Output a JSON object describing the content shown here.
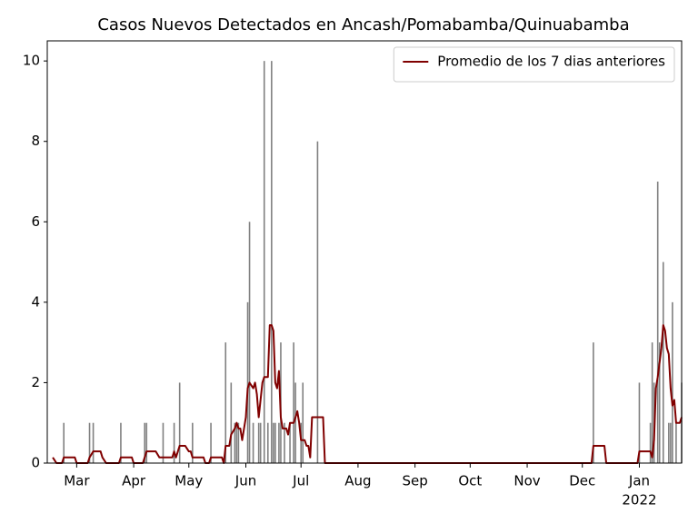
{
  "chart_data": {
    "type": "bar",
    "title": "Casos Nuevos Detectados en Ancash/Pomabamba/Quinuabamba",
    "xlim": [
      "2021-02-13",
      "2022-01-24"
    ],
    "xticks": [
      {
        "value": "2021-03-01",
        "label": "Mar"
      },
      {
        "value": "2021-04-01",
        "label": "Apr"
      },
      {
        "value": "2021-05-01",
        "label": "May"
      },
      {
        "value": "2021-06-01",
        "label": "Jun"
      },
      {
        "value": "2021-07-01",
        "label": "Jul"
      },
      {
        "value": "2021-08-01",
        "label": "Aug"
      },
      {
        "value": "2021-09-01",
        "label": "Sep"
      },
      {
        "value": "2021-10-01",
        "label": "Oct"
      },
      {
        "value": "2021-11-01",
        "label": "Nov"
      },
      {
        "value": "2021-12-01",
        "label": "Dec"
      },
      {
        "value": "2022-01-01",
        "label": "Jan"
      }
    ],
    "x_year_label": "2022",
    "ylim": [
      0,
      10.5
    ],
    "yticks": [
      0,
      2,
      4,
      6,
      8,
      10
    ],
    "legend": "upper right",
    "series": [
      {
        "type": "bar",
        "color": "#808080",
        "x": [
          "2021-02-22",
          "2021-03-08",
          "2021-03-10",
          "2021-03-25",
          "2021-04-07",
          "2021-04-08",
          "2021-04-17",
          "2021-04-23",
          "2021-04-26",
          "2021-05-03",
          "2021-05-13",
          "2021-05-21",
          "2021-05-24",
          "2021-05-26",
          "2021-05-27",
          "2021-05-28",
          "2021-06-02",
          "2021-06-03",
          "2021-06-05",
          "2021-06-08",
          "2021-06-09",
          "2021-06-11",
          "2021-06-13",
          "2021-06-15",
          "2021-06-16",
          "2021-06-17",
          "2021-06-19",
          "2021-06-20",
          "2021-06-22",
          "2021-06-25",
          "2021-06-27",
          "2021-06-28",
          "2021-07-01",
          "2021-07-02",
          "2021-07-10",
          "2021-12-07",
          "2022-01-01",
          "2022-01-07",
          "2022-01-08",
          "2022-01-09",
          "2022-01-11",
          "2022-01-12",
          "2022-01-14",
          "2022-01-17",
          "2022-01-18",
          "2022-01-19",
          "2022-01-21",
          "2022-01-24"
        ],
        "values": [
          1,
          1,
          1,
          1,
          1,
          1,
          1,
          1,
          2,
          1,
          1,
          3,
          2,
          1,
          1,
          1,
          4,
          6,
          1,
          1,
          1,
          10,
          1,
          10,
          1,
          1,
          1,
          3,
          1,
          1,
          3,
          2,
          1,
          2,
          8,
          3,
          2,
          1,
          3,
          2,
          7,
          3,
          5,
          1,
          1,
          4,
          1,
          2
        ]
      },
      {
        "type": "line",
        "name": "Promedio de los 7 dias anteriores",
        "color": "#800000",
        "x": [
          "2021-02-16",
          "2021-02-18",
          "2021-02-21",
          "2021-02-22",
          "2021-02-28",
          "2021-03-01",
          "2021-03-07",
          "2021-03-08",
          "2021-03-10",
          "2021-03-14",
          "2021-03-15",
          "2021-03-17",
          "2021-03-24",
          "2021-03-25",
          "2021-03-31",
          "2021-04-01",
          "2021-04-06",
          "2021-04-08",
          "2021-04-13",
          "2021-04-15",
          "2021-04-22",
          "2021-04-23",
          "2021-04-24",
          "2021-04-26",
          "2021-04-29",
          "2021-05-01",
          "2021-05-02",
          "2021-05-03",
          "2021-05-09",
          "2021-05-10",
          "2021-05-12",
          "2021-05-13",
          "2021-05-19",
          "2021-05-20",
          "2021-05-21",
          "2021-05-23",
          "2021-05-24",
          "2021-05-26",
          "2021-05-27",
          "2021-05-28",
          "2021-05-29",
          "2021-05-30",
          "2021-06-01",
          "2021-06-02",
          "2021-06-03",
          "2021-06-05",
          "2021-06-06",
          "2021-06-07",
          "2021-06-08",
          "2021-06-10",
          "2021-06-11",
          "2021-06-13",
          "2021-06-14",
          "2021-06-15",
          "2021-06-16",
          "2021-06-17",
          "2021-06-18",
          "2021-06-19",
          "2021-06-20",
          "2021-06-21",
          "2021-06-23",
          "2021-06-24",
          "2021-06-25",
          "2021-06-27",
          "2021-06-28",
          "2021-06-29",
          "2021-06-30",
          "2021-07-01",
          "2021-07-03",
          "2021-07-04",
          "2021-07-05",
          "2021-07-06",
          "2021-07-07",
          "2021-07-13",
          "2021-07-14",
          "2021-12-06",
          "2021-12-07",
          "2021-12-13",
          "2021-12-14",
          "2021-12-31",
          "2022-01-01",
          "2022-01-07",
          "2022-01-08",
          "2022-01-09",
          "2022-01-10",
          "2022-01-11",
          "2022-01-13",
          "2022-01-14",
          "2022-01-15",
          "2022-01-16",
          "2022-01-17",
          "2022-01-18",
          "2022-01-19",
          "2022-01-20",
          "2022-01-21",
          "2022-01-23",
          "2022-01-24"
        ],
        "values": [
          0.14,
          0,
          0,
          0.14,
          0.14,
          0,
          0,
          0.14,
          0.29,
          0.29,
          0.14,
          0,
          0,
          0.14,
          0.14,
          0,
          0,
          0.29,
          0.29,
          0.14,
          0.14,
          0.29,
          0.14,
          0.43,
          0.43,
          0.29,
          0.29,
          0.14,
          0.14,
          0,
          0,
          0.14,
          0.14,
          0,
          0.43,
          0.43,
          0.71,
          0.86,
          1,
          0.86,
          0.86,
          0.57,
          1.14,
          1.86,
          2,
          1.86,
          2,
          1.71,
          1.14,
          2,
          2.14,
          2.14,
          3.43,
          3.43,
          3.29,
          2,
          1.86,
          2.29,
          1.14,
          0.86,
          0.86,
          0.71,
          1,
          1,
          1.14,
          1.29,
          1,
          0.57,
          0.57,
          0.43,
          0.43,
          0.14,
          1.14,
          1.14,
          0,
          0,
          0.43,
          0.43,
          0,
          0,
          0.29,
          0.29,
          0.14,
          0.57,
          1.86,
          2.14,
          2.86,
          3.43,
          3.29,
          2.86,
          2.71,
          1.86,
          1.43,
          1.57,
          1,
          1,
          1.14
        ]
      }
    ]
  }
}
